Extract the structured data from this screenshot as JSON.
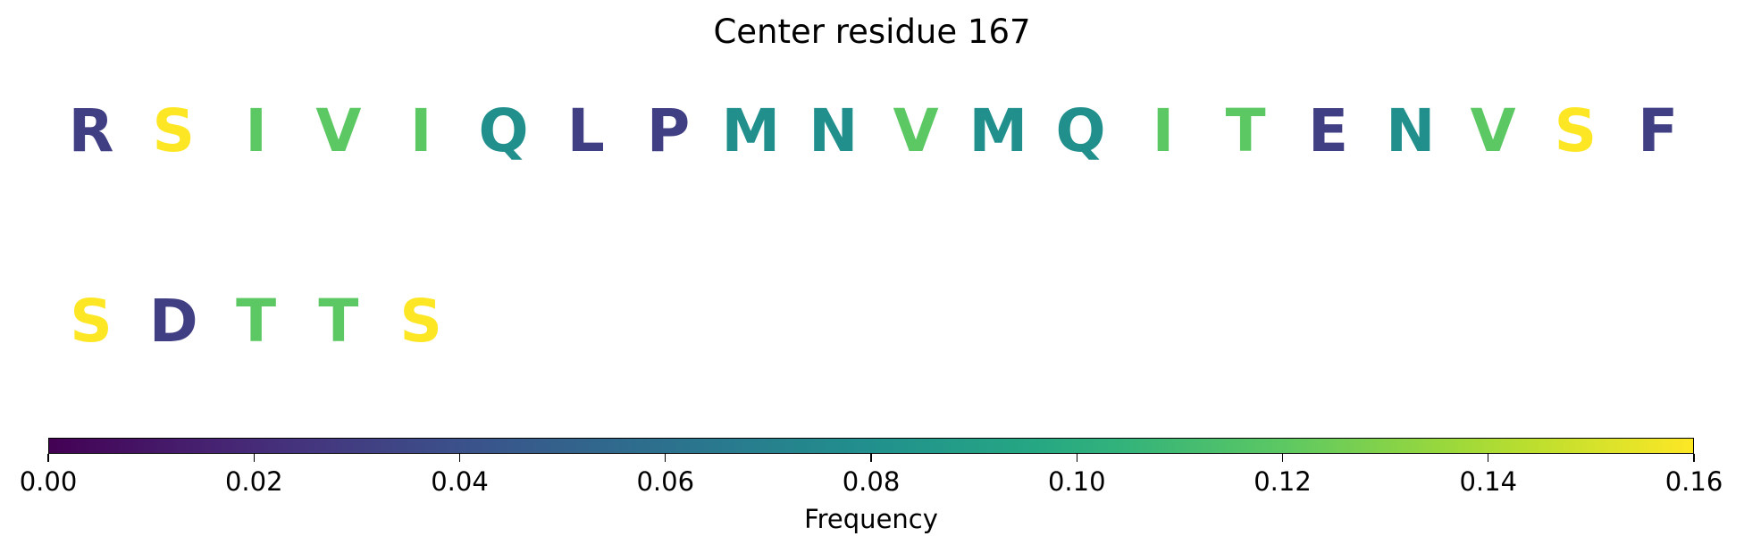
{
  "chart_data": {
    "type": "sequence-frequency-logo",
    "title": "Center residue 167",
    "residues": [
      {
        "letter": "R",
        "frequency": 0.03
      },
      {
        "letter": "S",
        "frequency": 0.16
      },
      {
        "letter": "I",
        "frequency": 0.12
      },
      {
        "letter": "V",
        "frequency": 0.12
      },
      {
        "letter": "I",
        "frequency": 0.12
      },
      {
        "letter": "Q",
        "frequency": 0.08
      },
      {
        "letter": "L",
        "frequency": 0.03
      },
      {
        "letter": "P",
        "frequency": 0.03
      },
      {
        "letter": "M",
        "frequency": 0.08
      },
      {
        "letter": "N",
        "frequency": 0.08
      },
      {
        "letter": "V",
        "frequency": 0.12
      },
      {
        "letter": "M",
        "frequency": 0.08
      },
      {
        "letter": "Q",
        "frequency": 0.08
      },
      {
        "letter": "I",
        "frequency": 0.12
      },
      {
        "letter": "T",
        "frequency": 0.12
      },
      {
        "letter": "E",
        "frequency": 0.03
      },
      {
        "letter": "N",
        "frequency": 0.08
      },
      {
        "letter": "V",
        "frequency": 0.12
      },
      {
        "letter": "S",
        "frequency": 0.16
      },
      {
        "letter": "F",
        "frequency": 0.03
      },
      {
        "letter": "S",
        "frequency": 0.16
      },
      {
        "letter": "D",
        "frequency": 0.03
      },
      {
        "letter": "T",
        "frequency": 0.12
      },
      {
        "letter": "T",
        "frequency": 0.12
      },
      {
        "letter": "S",
        "frequency": 0.16
      }
    ],
    "residues_per_row": 20,
    "colorbar": {
      "label": "Frequency",
      "range": [
        0,
        0.16
      ],
      "colormap": "viridis",
      "ticks": [
        "0.00",
        "0.02",
        "0.04",
        "0.06",
        "0.08",
        "0.10",
        "0.12",
        "0.14",
        "0.16"
      ]
    }
  }
}
